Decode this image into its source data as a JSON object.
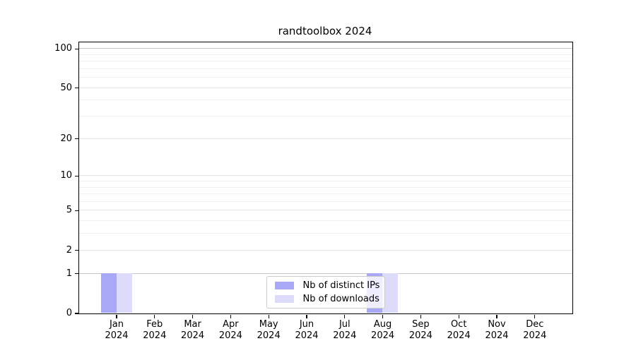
{
  "chart_data": {
    "type": "bar",
    "title": "randtoolbox 2024",
    "categories": [
      "Jan 2024",
      "Feb 2024",
      "Mar 2024",
      "Apr 2024",
      "May 2024",
      "Jun 2024",
      "Jul 2024",
      "Aug 2024",
      "Sep 2024",
      "Oct 2024",
      "Nov 2024",
      "Dec 2024"
    ],
    "series": [
      {
        "name": "Nb of distinct IPs",
        "color": "#a8a8f7",
        "values": [
          1,
          0,
          0,
          0,
          0,
          0,
          0,
          1,
          0,
          0,
          0,
          0
        ]
      },
      {
        "name": "Nb of downloads",
        "color": "#dcdcfa",
        "values": [
          1,
          0,
          0,
          0,
          0,
          0,
          0,
          1,
          0,
          0,
          0,
          0
        ]
      }
    ],
    "xlabel": "",
    "ylabel": "",
    "yscale": "log1p",
    "ylim": [
      0,
      112
    ],
    "yticks_major": [
      0,
      1,
      2,
      5,
      10,
      20,
      50,
      100
    ],
    "yticks_minor": [
      3,
      4,
      6,
      7,
      8,
      9,
      30,
      40,
      60,
      70,
      80,
      90
    ],
    "emphasized_gridlines": [
      1,
      100
    ],
    "grid": "on",
    "legend_position": "lower center"
  }
}
